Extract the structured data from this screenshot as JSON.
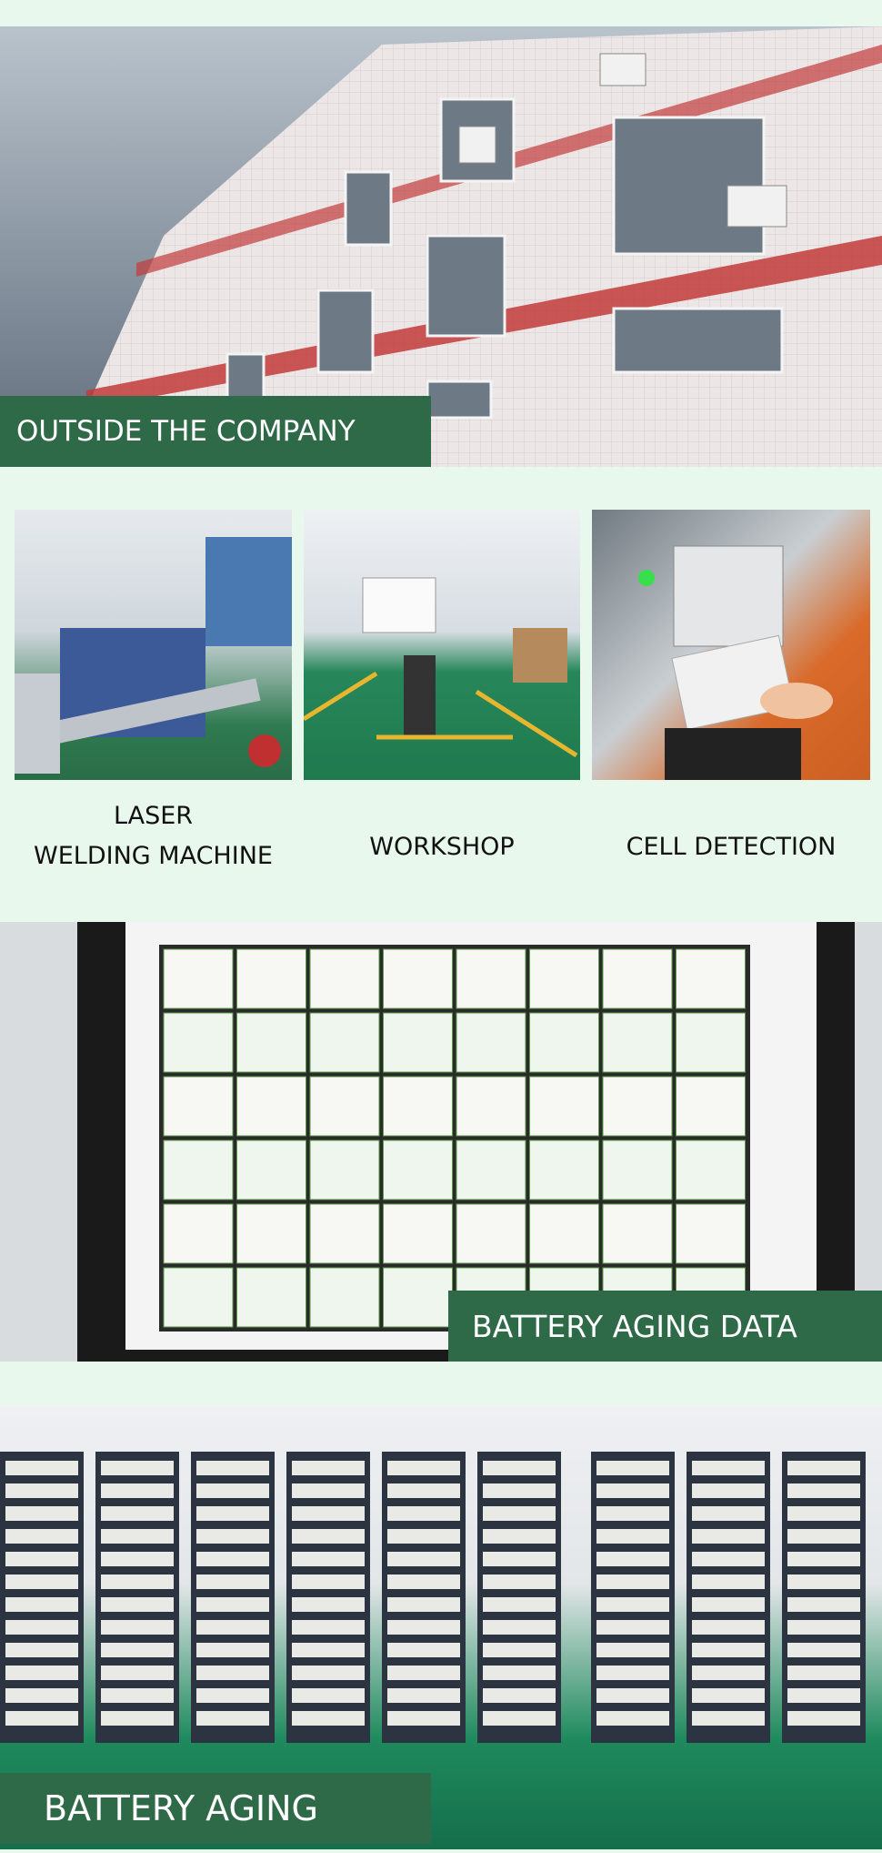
{
  "sections": [
    {
      "label": "OUTSIDE THE COMPANY"
    },
    {
      "label": "BATTERY AGING DATA"
    },
    {
      "label": "BATTERY AGING"
    }
  ],
  "photos": [
    {
      "caption": [
        "LASER",
        "WELDING MACHINE"
      ]
    },
    {
      "caption": "WORKSHOP"
    },
    {
      "caption": "CELL DETECTION"
    }
  ]
}
